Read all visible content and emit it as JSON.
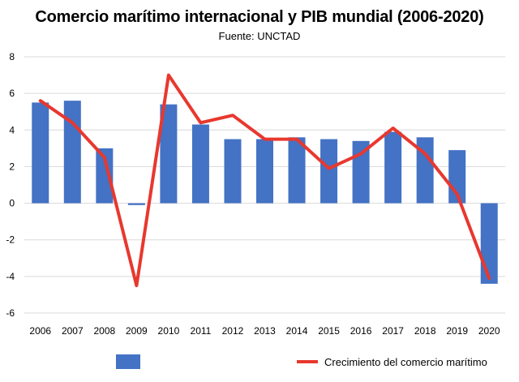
{
  "chart_data": {
    "type": "bar",
    "title": "Comercio marítimo internacional y PIB mundial (2006-2020)",
    "subtitle": "Fuente: UNCTAD",
    "categories": [
      "2006",
      "2007",
      "2008",
      "2009",
      "2010",
      "2011",
      "2012",
      "2013",
      "2014",
      "2015",
      "2016",
      "2017",
      "2018",
      "2019",
      "2020"
    ],
    "series": [
      {
        "name": "",
        "kind": "bar",
        "color": "#4472c4",
        "values": [
          5.5,
          5.6,
          3.0,
          -0.1,
          5.4,
          4.3,
          3.5,
          3.5,
          3.6,
          3.5,
          3.4,
          3.9,
          3.6,
          2.9,
          -4.4
        ]
      },
      {
        "name": "Crecimiento del comercio marítimo",
        "kind": "line",
        "color": "#e8382e",
        "values": [
          5.6,
          4.4,
          2.5,
          -4.5,
          7.0,
          4.4,
          4.8,
          3.5,
          3.5,
          1.9,
          2.7,
          4.1,
          2.7,
          0.5,
          -4.1
        ]
      }
    ],
    "ylim": [
      -6,
      8
    ],
    "yticks": [
      -6,
      -4,
      -2,
      0,
      2,
      4,
      6,
      8
    ],
    "ytick_labels": [
      "-6",
      "-4",
      "-2",
      "0",
      "2",
      "4",
      "6",
      "8"
    ],
    "grid": true,
    "legend": "bottom"
  }
}
